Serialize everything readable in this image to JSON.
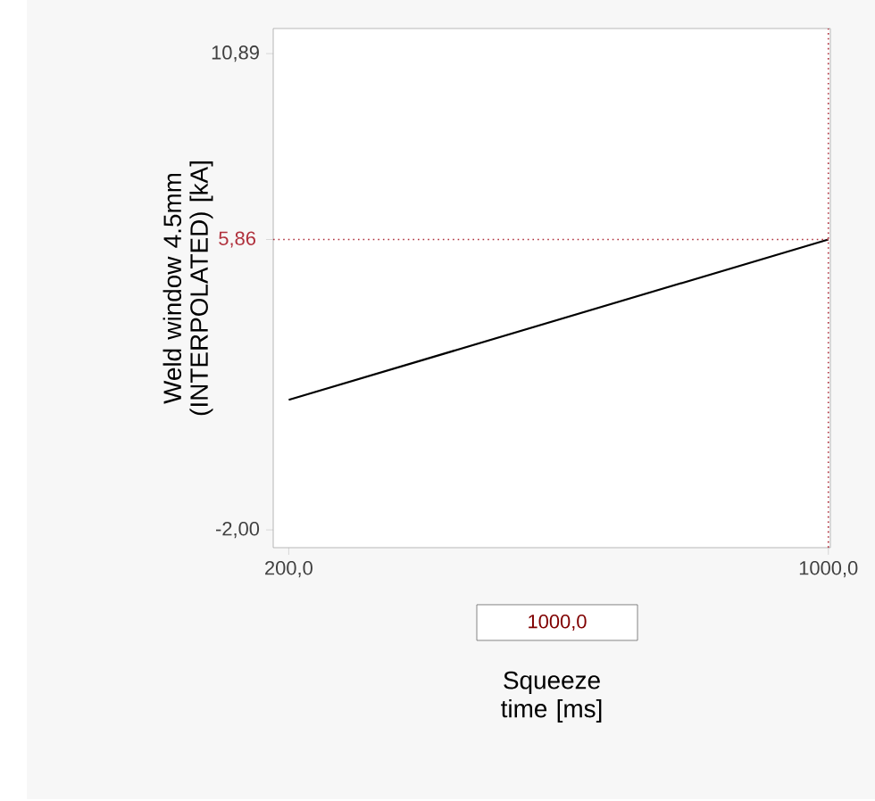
{
  "chart_data": {
    "type": "line",
    "xlabel": "Squeeze time [ms]",
    "ylabel": "Weld window 4.5mm (INTERPOLATED) [kA]",
    "x": [
      200,
      1000
    ],
    "series": [
      {
        "color": "#000000",
        "values": [
          1.52,
          5.86
        ]
      }
    ],
    "xlim": [
      177,
      1003
    ],
    "ylim": [
      -2.48,
      11.57
    ],
    "xticks": [
      {
        "value": 200,
        "label": "200,0"
      },
      {
        "value": 1000,
        "label": "1000,0"
      }
    ],
    "yticks": [
      {
        "value": 10.89,
        "label": "10,89"
      },
      {
        "value": 5.86,
        "label": null
      },
      {
        "value": -2.0,
        "label": "-2,00"
      }
    ],
    "ref_lines": [
      {
        "axis": "y",
        "value": 5.86,
        "label": "5,86",
        "color": "#b0303c",
        "line_style": "dotted"
      },
      {
        "axis": "x",
        "value": 1000,
        "color": "#b0303c",
        "line_style": "dotted"
      }
    ],
    "annotations": [
      "1000,0"
    ],
    "grid": false,
    "marker": "none",
    "line_style": "solid"
  }
}
